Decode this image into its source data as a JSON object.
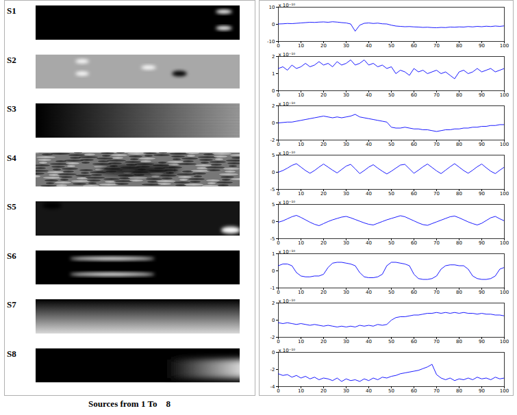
{
  "left_panel": {
    "labels": [
      "S1",
      "S2",
      "S3",
      "S4",
      "S5",
      "S6",
      "S7",
      "S8"
    ],
    "caption": "Sources from 1 To    8"
  },
  "chart_data": [
    {
      "type": "line",
      "annotations": [
        "x 10⁻¹⁰"
      ],
      "x": [
        0,
        2,
        4,
        6,
        8,
        10,
        12,
        14,
        16,
        18,
        20,
        22,
        24,
        26,
        28,
        30,
        32,
        34,
        36,
        38,
        40,
        42,
        44,
        46,
        48,
        50,
        52,
        54,
        56,
        58,
        60,
        62,
        64,
        66,
        68,
        70,
        72,
        74,
        76,
        78,
        80,
        82,
        84,
        86,
        88,
        90,
        92,
        94,
        96,
        98,
        100
      ],
      "series": [
        {
          "color": "#0000ff",
          "values": [
            0.2,
            0.3,
            0.5,
            0.4,
            0.6,
            0.8,
            1.0,
            1.2,
            1.1,
            1.3,
            1.4,
            1.2,
            1.5,
            1.3,
            1.0,
            0.8,
            0.2,
            -4.0,
            -0.5,
            0.6,
            0.8,
            0.5,
            0.7,
            0.3,
            0.2,
            -0.5,
            -1.0,
            -1.2,
            -1.4,
            -1.3,
            -1.5,
            -1.6,
            -1.8,
            -1.7,
            -1.9,
            -2.0,
            -1.8,
            -1.9,
            -1.6,
            -1.7,
            -1.5,
            -1.6,
            -1.3,
            -1.5,
            -1.2,
            -1.4,
            -1.1,
            -1.3,
            -1.0,
            -1.2,
            -0.9
          ]
        }
      ],
      "xlim": [
        0,
        100
      ],
      "xticks": [
        0,
        10,
        20,
        30,
        40,
        50,
        60,
        70,
        80,
        90,
        100
      ],
      "ylim": [
        -10,
        10
      ],
      "yticks": [
        -10,
        0,
        10
      ],
      "grid": false
    },
    {
      "type": "line",
      "annotations": [
        "x 10⁻¹⁰"
      ],
      "x": [
        0,
        2,
        4,
        6,
        8,
        10,
        12,
        14,
        16,
        18,
        20,
        22,
        24,
        26,
        28,
        30,
        32,
        34,
        36,
        38,
        40,
        42,
        44,
        46,
        48,
        50,
        52,
        54,
        56,
        58,
        60,
        62,
        64,
        66,
        68,
        70,
        72,
        74,
        76,
        78,
        80,
        82,
        84,
        86,
        88,
        90,
        92,
        94,
        96,
        98,
        100
      ],
      "series": [
        {
          "color": "#0000ff",
          "values": [
            1.3,
            1.4,
            1.2,
            1.5,
            1.3,
            1.4,
            1.6,
            1.4,
            1.5,
            1.7,
            1.5,
            1.6,
            1.4,
            1.7,
            1.5,
            1.6,
            1.8,
            1.5,
            1.6,
            1.8,
            1.5,
            1.6,
            1.4,
            1.5,
            1.3,
            1.4,
            1.0,
            1.2,
            1.1,
            0.9,
            1.3,
            1.1,
            1.2,
            1.0,
            1.1,
            1.2,
            1.0,
            1.1,
            0.9,
            0.7,
            1.1,
            1.2,
            1.0,
            1.1,
            1.3,
            1.1,
            1.2,
            1.3,
            1.1,
            1.2,
            1.3
          ]
        }
      ],
      "xlim": [
        0,
        100
      ],
      "xticks": [
        0,
        10,
        20,
        30,
        40,
        50,
        60,
        70,
        80,
        90,
        100
      ],
      "ylim": [
        0,
        2
      ],
      "yticks": [
        0,
        1,
        2
      ],
      "grid": false
    },
    {
      "type": "line",
      "annotations": [
        "x 10⁻¹⁰"
      ],
      "x": [
        0,
        2,
        4,
        6,
        8,
        10,
        12,
        14,
        16,
        18,
        20,
        22,
        24,
        26,
        28,
        30,
        32,
        34,
        36,
        38,
        40,
        42,
        44,
        46,
        48,
        50,
        52,
        54,
        56,
        58,
        60,
        62,
        64,
        66,
        68,
        70,
        72,
        74,
        76,
        78,
        80,
        82,
        84,
        86,
        88,
        90,
        92,
        94,
        96,
        98,
        100
      ],
      "series": [
        {
          "color": "#0000ff",
          "values": [
            0.0,
            0.05,
            0.1,
            0.1,
            0.2,
            0.3,
            0.4,
            0.5,
            0.6,
            0.7,
            0.8,
            0.7,
            0.6,
            0.7,
            0.6,
            0.7,
            0.8,
            1.0,
            0.7,
            0.6,
            0.5,
            0.4,
            0.3,
            0.2,
            0.1,
            -0.5,
            -0.6,
            -0.6,
            -0.5,
            -0.6,
            -0.7,
            -0.7,
            -0.8,
            -0.8,
            -0.9,
            -1.0,
            -0.9,
            -0.8,
            -0.8,
            -0.7,
            -0.7,
            -0.6,
            -0.6,
            -0.5,
            -0.5,
            -0.4,
            -0.4,
            -0.3,
            -0.3,
            -0.2,
            -0.2
          ]
        }
      ],
      "xlim": [
        0,
        100
      ],
      "xticks": [
        0,
        10,
        20,
        30,
        40,
        50,
        60,
        70,
        80,
        90,
        100
      ],
      "ylim": [
        -2,
        2
      ],
      "yticks": [
        -2,
        0,
        2
      ],
      "grid": false
    },
    {
      "type": "line",
      "annotations": [
        "x 10⁻¹⁰"
      ],
      "x": [
        0,
        2,
        4,
        6,
        8,
        10,
        12,
        14,
        16,
        18,
        20,
        22,
        24,
        26,
        28,
        30,
        32,
        34,
        36,
        38,
        40,
        42,
        44,
        46,
        48,
        50,
        52,
        54,
        56,
        58,
        60,
        62,
        64,
        66,
        68,
        70,
        72,
        74,
        76,
        78,
        80,
        82,
        84,
        86,
        88,
        90,
        92,
        94,
        96,
        98,
        100
      ],
      "series": [
        {
          "color": "#0000ff",
          "values": [
            0.0,
            0.5,
            1.2,
            2.0,
            2.5,
            1.5,
            0.5,
            -0.3,
            0.5,
            1.5,
            2.4,
            1.5,
            0.6,
            -0.2,
            0.8,
            1.8,
            2.3,
            1.0,
            -0.4,
            0.5,
            1.5,
            2.2,
            1.2,
            0.3,
            -0.5,
            0.3,
            1.2,
            2.1,
            2.3,
            1.0,
            -0.3,
            0.6,
            1.6,
            2.4,
            1.4,
            0.4,
            -0.4,
            0.6,
            1.6,
            2.5,
            1.5,
            0.5,
            -0.3,
            0.6,
            1.6,
            2.4,
            1.3,
            0.3,
            -0.4,
            0.6,
            1.5
          ]
        }
      ],
      "xlim": [
        0,
        100
      ],
      "xticks": [
        0,
        10,
        20,
        30,
        40,
        50,
        60,
        70,
        80,
        90,
        100
      ],
      "ylim": [
        -5,
        5
      ],
      "yticks": [
        -5,
        0,
        5
      ],
      "grid": false
    },
    {
      "type": "line",
      "annotations": [
        "x 10⁻¹⁰"
      ],
      "x": [
        0,
        2,
        4,
        6,
        8,
        10,
        12,
        14,
        16,
        18,
        20,
        22,
        24,
        26,
        28,
        30,
        32,
        34,
        36,
        38,
        40,
        42,
        44,
        46,
        48,
        50,
        52,
        54,
        56,
        58,
        60,
        62,
        64,
        66,
        68,
        70,
        72,
        74,
        76,
        78,
        80,
        82,
        84,
        86,
        88,
        90,
        92,
        94,
        96,
        98,
        100
      ],
      "series": [
        {
          "color": "#0000ff",
          "values": [
            -0.2,
            0.2,
            0.8,
            1.4,
            1.8,
            1.2,
            0.5,
            -0.2,
            -0.8,
            -1.2,
            -0.6,
            0.0,
            0.5,
            0.9,
            1.3,
            1.5,
            1.1,
            0.6,
            0.1,
            -0.4,
            -0.8,
            -1.0,
            -0.5,
            0.0,
            0.5,
            0.9,
            1.3,
            1.7,
            1.4,
            0.8,
            0.2,
            -0.4,
            -0.9,
            -1.1,
            -0.6,
            -0.1,
            0.4,
            0.9,
            1.4,
            1.6,
            1.1,
            0.5,
            -0.1,
            -0.6,
            -1.0,
            -0.5,
            0.3,
            1.1,
            1.5,
            0.8,
            0.2
          ]
        }
      ],
      "xlim": [
        0,
        100
      ],
      "xticks": [
        0,
        10,
        20,
        30,
        40,
        50,
        60,
        70,
        80,
        90,
        100
      ],
      "ylim": [
        -5,
        5
      ],
      "yticks": [
        -5,
        0,
        5
      ],
      "grid": false
    },
    {
      "type": "line",
      "annotations": [
        "x 10⁻¹⁰"
      ],
      "x": [
        0,
        2,
        4,
        6,
        8,
        10,
        12,
        14,
        16,
        18,
        20,
        22,
        24,
        26,
        28,
        30,
        32,
        34,
        36,
        38,
        40,
        42,
        44,
        46,
        48,
        50,
        52,
        54,
        56,
        58,
        60,
        62,
        64,
        66,
        68,
        70,
        72,
        74,
        76,
        78,
        80,
        82,
        84,
        86,
        88,
        90,
        92,
        94,
        96,
        98,
        100
      ],
      "series": [
        {
          "color": "#0000ff",
          "values": [
            0.3,
            0.4,
            0.4,
            0.3,
            -0.1,
            -0.3,
            -0.35,
            -0.35,
            -0.3,
            -0.3,
            -0.2,
            0.2,
            0.45,
            0.5,
            0.5,
            0.45,
            0.4,
            0.3,
            -0.1,
            -0.35,
            -0.4,
            -0.4,
            -0.35,
            -0.2,
            0.3,
            0.5,
            0.5,
            0.45,
            0.4,
            0.3,
            -0.2,
            -0.45,
            -0.5,
            -0.5,
            -0.45,
            -0.3,
            0.1,
            0.3,
            0.35,
            0.35,
            0.3,
            0.3,
            0.1,
            -0.3,
            -0.45,
            -0.5,
            -0.5,
            -0.45,
            -0.3,
            0.1,
            0.2
          ]
        }
      ],
      "xlim": [
        0,
        100
      ],
      "xticks": [
        0,
        10,
        20,
        30,
        40,
        50,
        60,
        70,
        80,
        90,
        100
      ],
      "ylim": [
        -1,
        1
      ],
      "yticks": [
        -1,
        0,
        1
      ],
      "grid": false
    },
    {
      "type": "line",
      "annotations": [
        "x 10⁻¹⁰"
      ],
      "x": [
        0,
        2,
        4,
        6,
        8,
        10,
        12,
        14,
        16,
        18,
        20,
        22,
        24,
        26,
        28,
        30,
        32,
        34,
        36,
        38,
        40,
        42,
        44,
        46,
        48,
        50,
        52,
        54,
        56,
        58,
        60,
        62,
        64,
        66,
        68,
        70,
        72,
        74,
        76,
        78,
        80,
        82,
        84,
        86,
        88,
        90,
        92,
        94,
        96,
        98,
        100
      ],
      "series": [
        {
          "color": "#0000ff",
          "values": [
            -0.3,
            -0.4,
            -0.3,
            -0.4,
            -0.5,
            -0.4,
            -0.5,
            -0.6,
            -0.5,
            -0.6,
            -0.7,
            -0.6,
            -0.7,
            -0.8,
            -0.7,
            -0.8,
            -0.7,
            -0.8,
            -0.6,
            -0.7,
            -0.6,
            -0.7,
            -0.5,
            -0.6,
            -0.5,
            0.0,
            0.3,
            0.4,
            0.4,
            0.5,
            0.6,
            0.6,
            0.7,
            0.8,
            0.8,
            0.9,
            0.8,
            0.9,
            0.8,
            0.9,
            0.8,
            0.9,
            0.8,
            0.8,
            0.7,
            0.8,
            0.7,
            0.7,
            0.6,
            0.6,
            0.5
          ]
        }
      ],
      "xlim": [
        0,
        100
      ],
      "xticks": [
        0,
        10,
        20,
        30,
        40,
        50,
        60,
        70,
        80,
        90,
        100
      ],
      "ylim": [
        -2,
        2
      ],
      "yticks": [
        -2,
        0,
        2
      ],
      "grid": false
    },
    {
      "type": "line",
      "annotations": [
        "x 10⁻¹⁰"
      ],
      "x": [
        0,
        2,
        4,
        6,
        8,
        10,
        12,
        14,
        16,
        18,
        20,
        22,
        24,
        26,
        28,
        30,
        32,
        34,
        36,
        38,
        40,
        42,
        44,
        46,
        48,
        50,
        52,
        54,
        56,
        58,
        60,
        62,
        64,
        66,
        68,
        70,
        72,
        74,
        76,
        78,
        80,
        82,
        84,
        86,
        88,
        90,
        92,
        94,
        96,
        98,
        100
      ],
      "series": [
        {
          "color": "#0000ff",
          "values": [
            -2.5,
            -2.7,
            -2.6,
            -2.9,
            -2.7,
            -3.0,
            -2.8,
            -3.1,
            -2.9,
            -3.2,
            -3.0,
            -3.1,
            -3.3,
            -3.0,
            -3.4,
            -3.1,
            -3.3,
            -3.2,
            -3.4,
            -3.1,
            -3.3,
            -3.0,
            -3.2,
            -2.9,
            -3.0,
            -2.8,
            -2.7,
            -2.5,
            -2.4,
            -2.3,
            -2.2,
            -2.1,
            -1.9,
            -1.7,
            -1.4,
            -2.6,
            -3.0,
            -3.2,
            -3.0,
            -3.3,
            -3.1,
            -3.2,
            -3.0,
            -3.2,
            -2.9,
            -3.1,
            -3.0,
            -3.2,
            -2.9,
            -3.1,
            -3.0
          ]
        }
      ],
      "xlim": [
        0,
        100
      ],
      "xticks": [
        0,
        10,
        20,
        30,
        40,
        50,
        60,
        70,
        80,
        90,
        100
      ],
      "ylim": [
        -4,
        0
      ],
      "yticks": [
        -4,
        -2,
        0
      ],
      "grid": false
    }
  ]
}
